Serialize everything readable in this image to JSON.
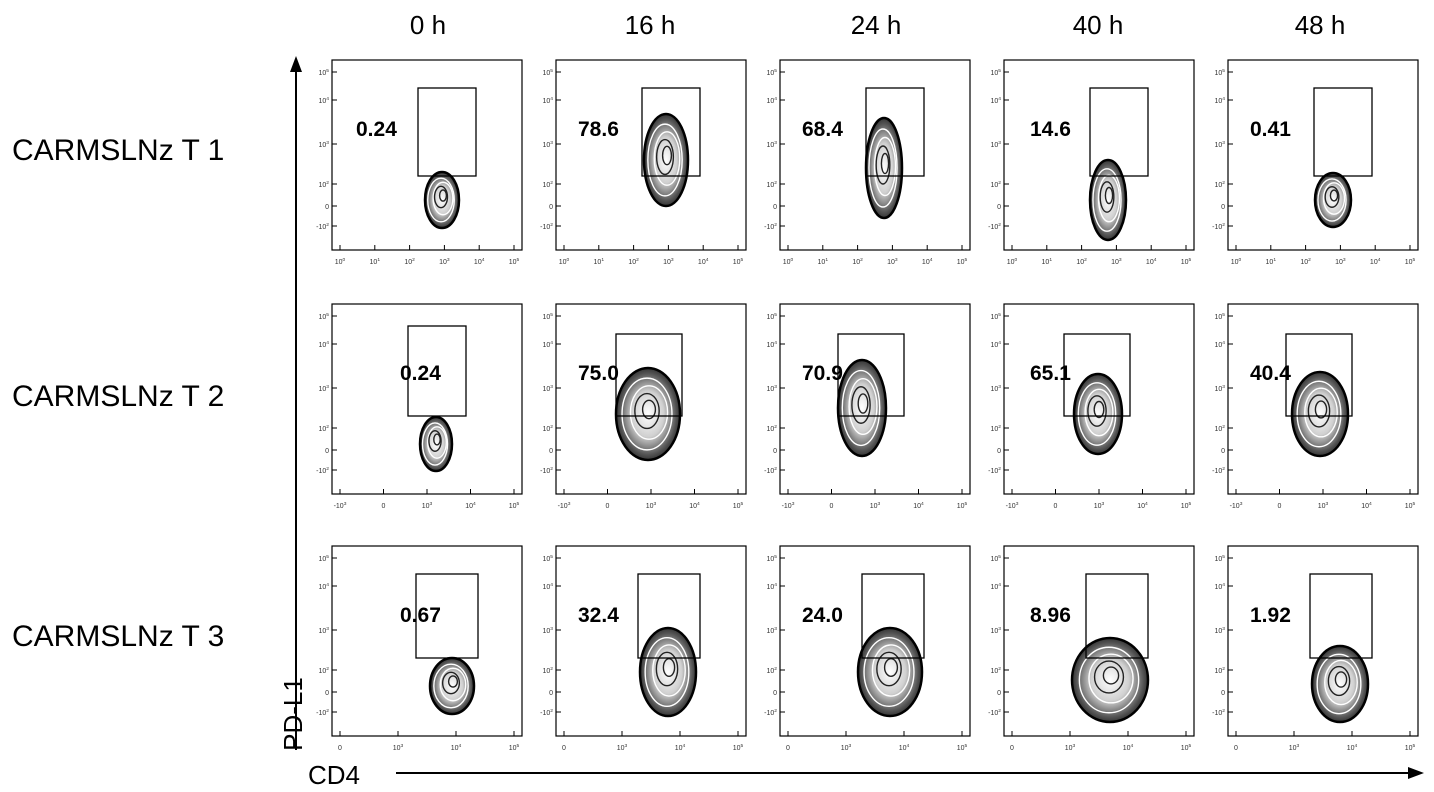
{
  "chart_data": {
    "type": "contour",
    "columns": [
      "0 h",
      "16 h",
      "24 h",
      "40 h",
      "48 h"
    ],
    "rows": [
      "CARMSLNz T 1",
      "CARMSLNz T 2",
      "CARMSLNz T 3"
    ],
    "xlabel": "CD4",
    "ylabel": "PD-L1",
    "gate_percentages": [
      [
        "0.24",
        "78.6",
        "68.4",
        "14.6",
        "0.41"
      ],
      [
        "0.24",
        "75.0",
        "70.9",
        "65.1",
        "40.4"
      ],
      [
        "0.67",
        "32.4",
        "24.0",
        "8.96",
        "1.92"
      ]
    ],
    "y_tick_labels": [
      "10^5",
      "10^4",
      "10^3",
      "10^2",
      "0",
      "-10^2"
    ],
    "x_tick_labels": [
      [
        "10^0",
        "10^1",
        "10^2",
        "10^3",
        "10^4",
        "10^5"
      ],
      [
        "-10^3",
        "0",
        "10^3",
        "10^4",
        "10^5"
      ],
      [
        "0",
        "10^3",
        "10^4",
        "10^5"
      ]
    ],
    "x_scale": "logicle",
    "y_scale": "logicle"
  }
}
